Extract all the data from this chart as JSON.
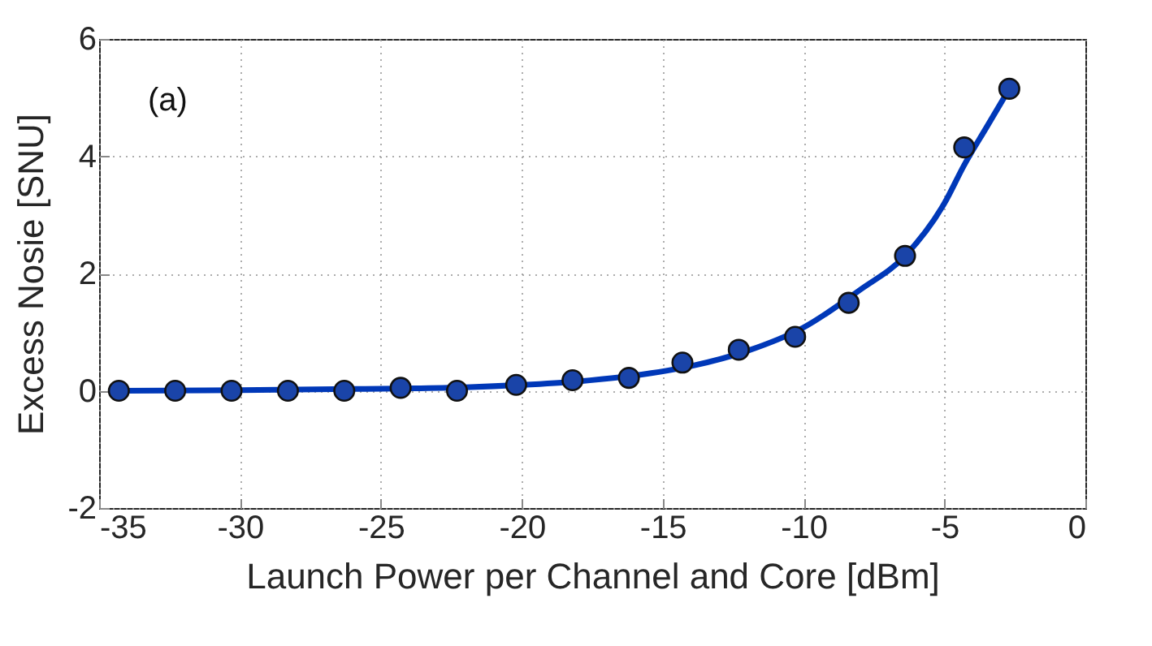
{
  "chart_data": {
    "type": "scatter",
    "xlabel": "Launch Power per Channel and Core [dBm]",
    "ylabel": "Excess Nosie [SNU]",
    "annotations": [
      "(a)"
    ],
    "xlim": [
      -35,
      0
    ],
    "xticks": [
      -35,
      -30,
      -25,
      -20,
      -15,
      -10,
      -5,
      0
    ],
    "ylim": [
      -2,
      6
    ],
    "yticks": [
      -2,
      0,
      2,
      4,
      6
    ],
    "grid": true,
    "marker": "circle",
    "series": [
      {
        "type": "line",
        "marker": "none",
        "color": "#0038b8",
        "x": [
          -34.3,
          -30,
          -26,
          -22,
          -20,
          -18,
          -16,
          -14,
          -12,
          -10,
          -8,
          -6.4,
          -5,
          -4.3,
          -3.5,
          -2.7
        ],
        "values": [
          0,
          0.01,
          0.03,
          0.06,
          0.1,
          0.16,
          0.26,
          0.42,
          0.68,
          1.08,
          1.72,
          2.3,
          3.2,
          3.85,
          4.5,
          5.15
        ]
      },
      {
        "color": "#1a44a8",
        "x": [
          -34.3,
          -32.3,
          -30.3,
          -28.3,
          -26.3,
          -24.3,
          -22.3,
          -20.2,
          -18.2,
          -16.2,
          -14.3,
          -12.3,
          -10.3,
          -8.4,
          -6.4,
          -4.3,
          -2.7
        ],
        "values": [
          0,
          0,
          0,
          0,
          0,
          0.05,
          0,
          0.1,
          0.18,
          0.22,
          0.48,
          0.7,
          0.92,
          1.5,
          2.3,
          4.15,
          5.15
        ]
      }
    ]
  }
}
